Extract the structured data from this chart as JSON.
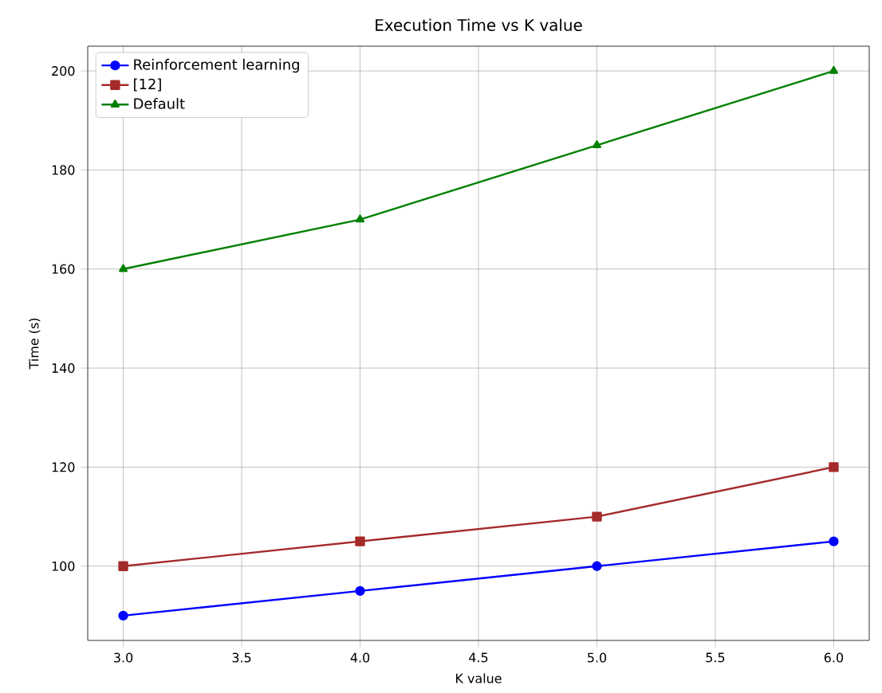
{
  "chart_data": {
    "type": "line",
    "title": "Execution Time vs K value",
    "xlabel": "K value",
    "ylabel": "Time (s)",
    "x": [
      3,
      4,
      5,
      6
    ],
    "series": [
      {
        "name": "Reinforcement learning",
        "color": "#0000ff",
        "marker": "circle",
        "values": [
          90,
          95,
          100,
          105
        ]
      },
      {
        "name": "[12]",
        "color": "#a52a2a",
        "marker": "square",
        "values": [
          100,
          105,
          110,
          120
        ]
      },
      {
        "name": "Default",
        "color": "#008000",
        "marker": "triangle",
        "values": [
          160,
          170,
          185,
          200
        ]
      }
    ],
    "xlim": [
      2.85,
      6.15
    ],
    "ylim": [
      85,
      205
    ],
    "xticks": [
      {
        "value": 3,
        "label": "3.0"
      },
      {
        "value": 3.5,
        "label": "3.5"
      },
      {
        "value": 4,
        "label": "4.0"
      },
      {
        "value": 4.5,
        "label": "4.5"
      },
      {
        "value": 5,
        "label": "5.0"
      },
      {
        "value": 5.5,
        "label": "5.5"
      },
      {
        "value": 6,
        "label": "6.0"
      }
    ],
    "yticks": [
      100,
      120,
      140,
      160,
      180,
      200
    ],
    "grid": true,
    "legend": "top left",
    "line_style": "solid"
  }
}
